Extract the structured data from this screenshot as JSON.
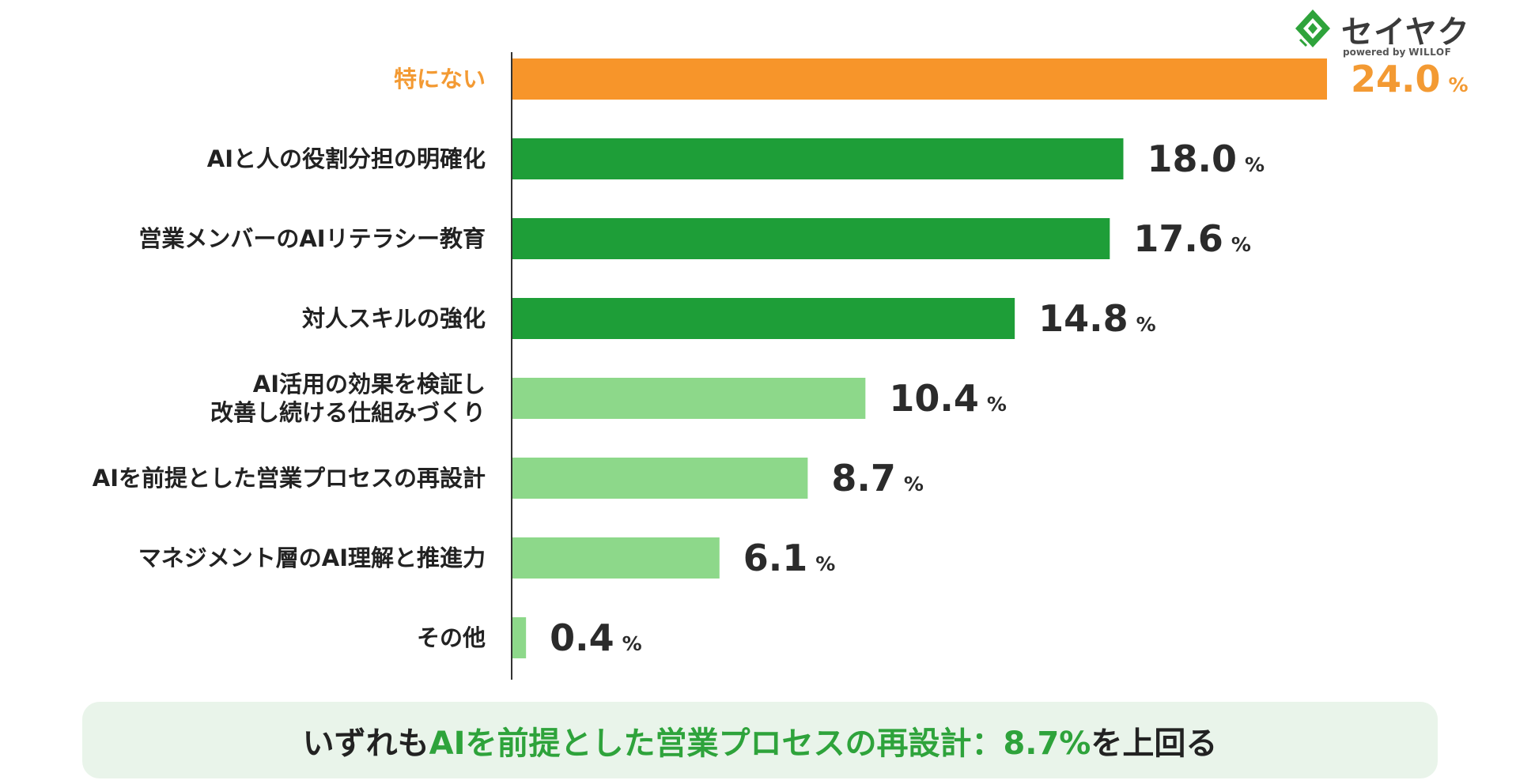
{
  "chart_data": {
    "type": "bar",
    "orientation": "horizontal",
    "categories": [
      [
        "特にない"
      ],
      [
        "AIと人の役割分担の明確化"
      ],
      [
        "営業メンバーのAIリテラシー教育"
      ],
      [
        "対人スキルの強化"
      ],
      [
        "AI活用の効果を検証し",
        "改善し続ける仕組みづくり"
      ],
      [
        "AIを前提とした営業プロセスの再設計"
      ],
      [
        "マネジメント層のAI理解と推進力"
      ],
      [
        "その他"
      ]
    ],
    "values": [
      24.0,
      18.0,
      17.6,
      14.8,
      10.4,
      8.7,
      6.1,
      0.4
    ],
    "value_labels": [
      "24.0",
      "18.0",
      "17.6",
      "14.8",
      "10.4",
      "8.7",
      "6.1",
      "0.4"
    ],
    "unit": "%",
    "xlim": [
      0,
      24.0
    ],
    "grid": false,
    "legend": "none",
    "colors": [
      "#f7952a",
      "#1e9e38",
      "#1e9e38",
      "#1e9e38",
      "#8dd88a",
      "#8dd88a",
      "#8dd88a",
      "#8dd88a"
    ],
    "label_colors": [
      "#f39a33",
      "#222222",
      "#222222",
      "#222222",
      "#222222",
      "#222222",
      "#222222",
      "#222222"
    ],
    "value_colors": [
      "#f39a33",
      "#2b2b2b",
      "#2b2b2b",
      "#2b2b2b",
      "#2b2b2b",
      "#2b2b2b",
      "#2b2b2b",
      "#2b2b2b"
    ]
  },
  "logo": {
    "name": "セイヤク",
    "sub_prefix": "powered by",
    "sub_brand": "WILLOF",
    "color": "#2ea33b"
  },
  "summary": {
    "prefix": "いずれも ",
    "highlight": "AIを前提とした営業プロセスの再設計：8.7%",
    "suffix": " を上回る",
    "background": "#e9f4ea",
    "highlight_color": "#2ea33b"
  }
}
